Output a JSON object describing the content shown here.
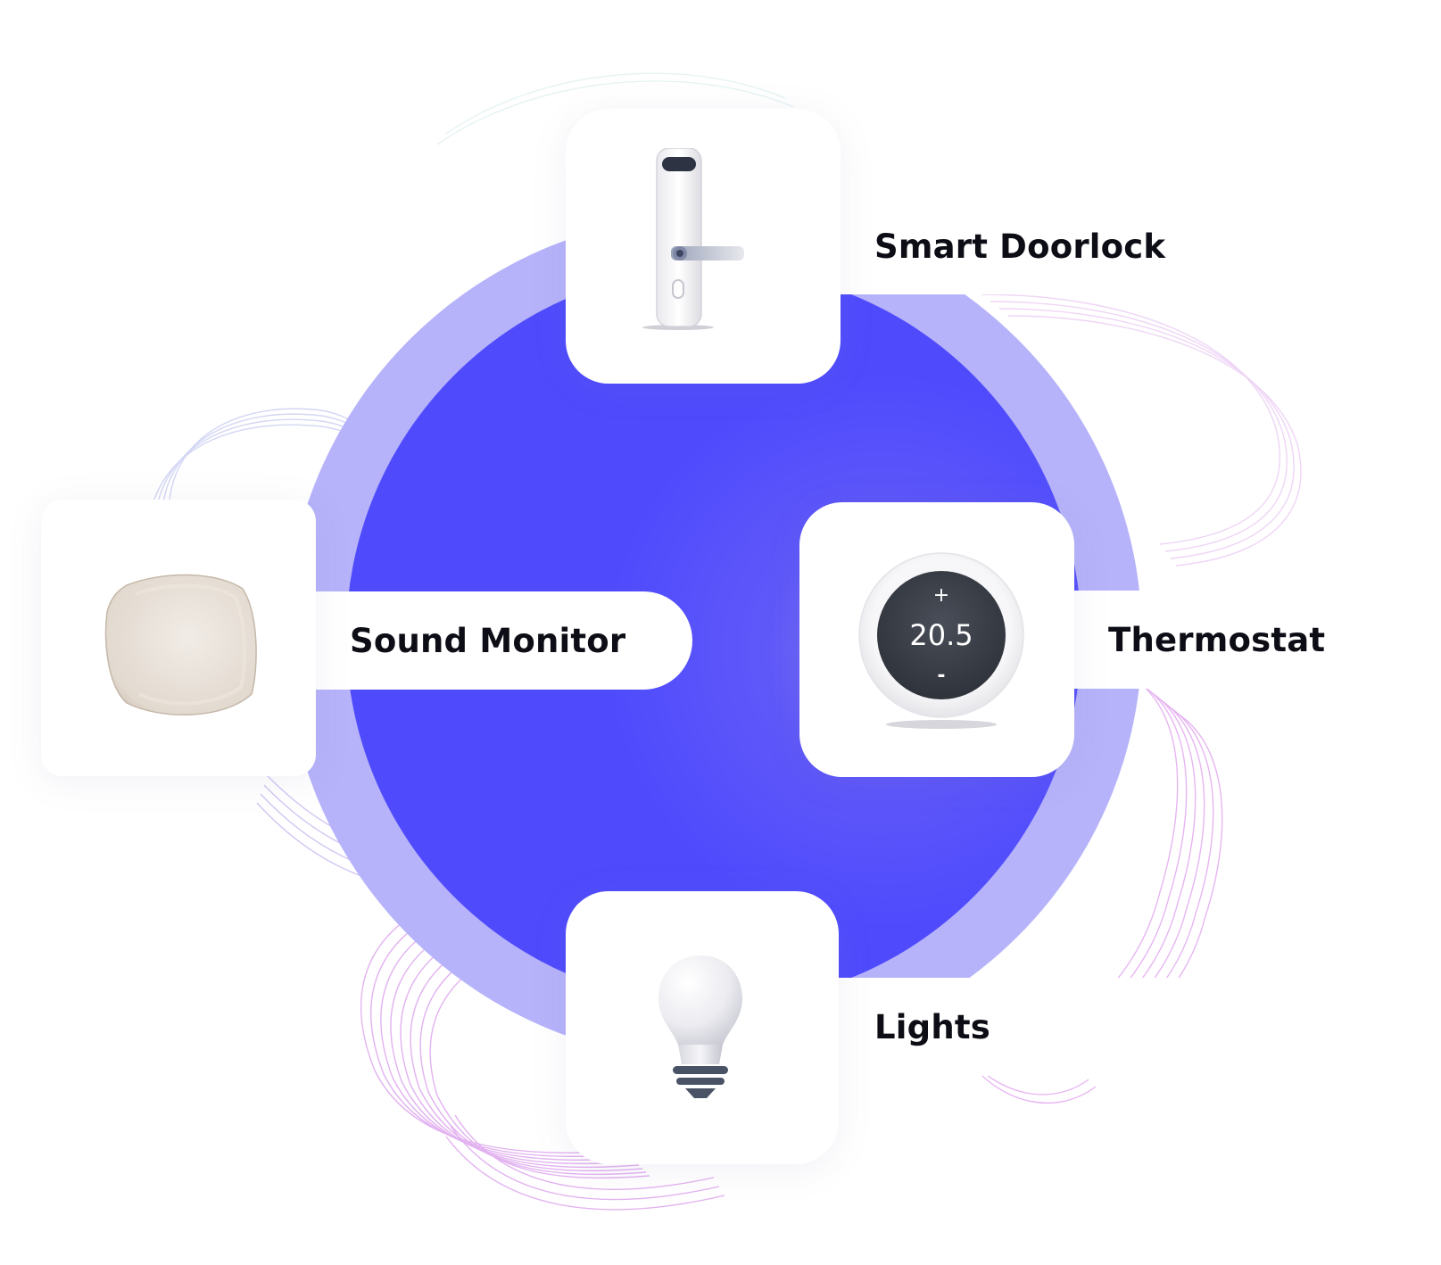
{
  "devices": [
    {
      "label": "Smart Doorlock",
      "icon": "smart-doorlock-icon"
    },
    {
      "label": "Sound Monitor",
      "icon": "sound-monitor-icon"
    },
    {
      "label": "Thermostat",
      "icon": "thermostat-icon",
      "display_value": "20.5",
      "plus_symbol": "+",
      "minus_symbol": "-"
    },
    {
      "label": "Lights",
      "icon": "light-bulb-icon"
    }
  ],
  "colors": {
    "inner_circle": "#4f4bfd",
    "outer_ring": "#b6b3fa",
    "card_background": "#ffffff",
    "label_text": "#0d0d16",
    "wave_lines": "#d08ee6"
  }
}
